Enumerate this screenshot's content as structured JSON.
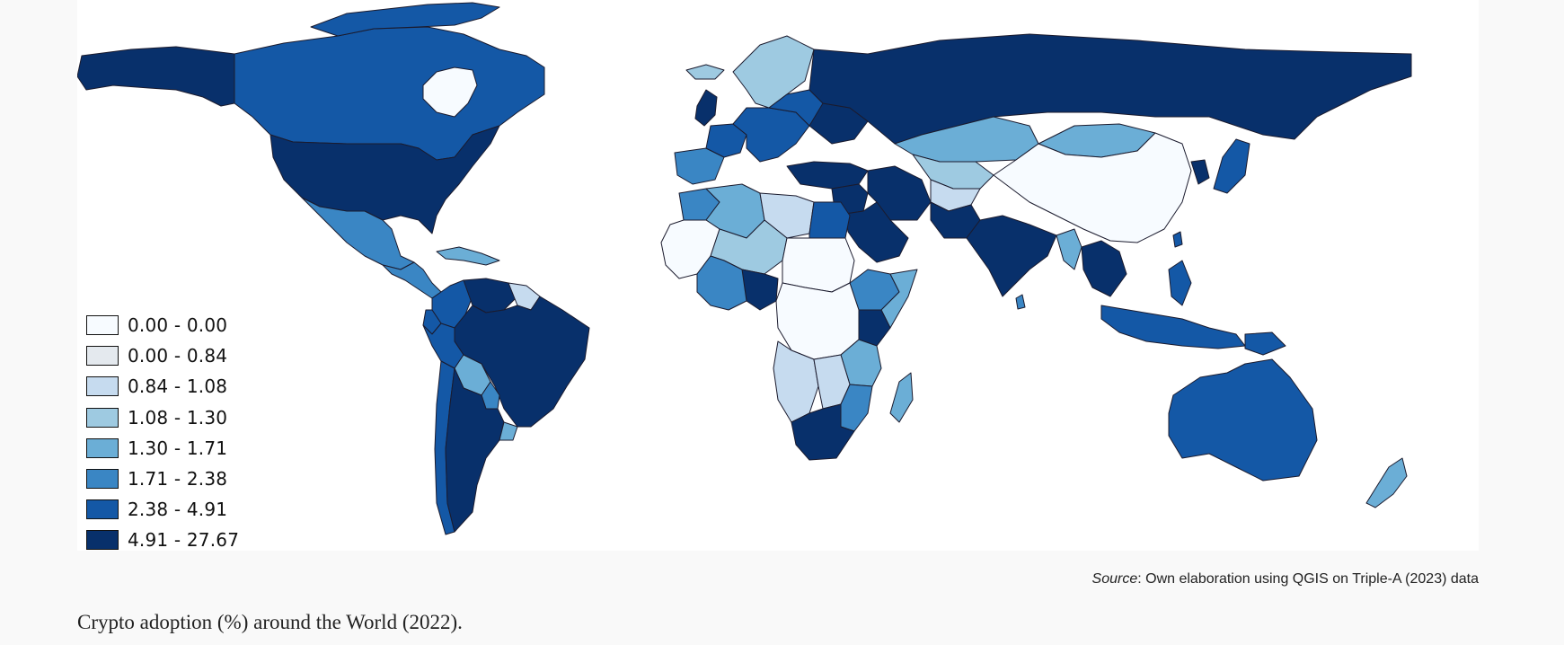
{
  "legend": {
    "classes": [
      {
        "label": "0.00 - 0.00",
        "color": "#f7fbff"
      },
      {
        "label": "0.00 - 0.84",
        "color": "#e4e9ee"
      },
      {
        "label": "0.84 - 1.08",
        "color": "#c6dbef"
      },
      {
        "label": "1.08 - 1.30",
        "color": "#9ecae1"
      },
      {
        "label": "1.30 - 1.71",
        "color": "#6baed6"
      },
      {
        "label": "1.71 - 2.38",
        "color": "#3a86c4"
      },
      {
        "label": "2.38 - 4.91",
        "color": "#1458a6"
      },
      {
        "label": "4.91 - 27.67",
        "color": "#08306b"
      }
    ]
  },
  "source": {
    "prefix": "Source",
    "text": ": Own elaboration using QGIS on Triple-A (2023) data"
  },
  "caption": "Crypto adoption (%) around the World (2022).",
  "regions": [
    {
      "name": "alaska",
      "class": 7
    },
    {
      "name": "canada",
      "class": 6
    },
    {
      "name": "usa",
      "class": 7
    },
    {
      "name": "mexico",
      "class": 5
    },
    {
      "name": "central-america",
      "class": 5
    },
    {
      "name": "caribbean",
      "class": 4
    },
    {
      "name": "greenland",
      "class": 0
    },
    {
      "name": "colombia",
      "class": 6
    },
    {
      "name": "venezuela",
      "class": 7
    },
    {
      "name": "guianas",
      "class": 2
    },
    {
      "name": "brazil",
      "class": 7
    },
    {
      "name": "peru",
      "class": 6
    },
    {
      "name": "ecuador",
      "class": 6
    },
    {
      "name": "bolivia",
      "class": 4
    },
    {
      "name": "paraguay",
      "class": 5
    },
    {
      "name": "chile",
      "class": 6
    },
    {
      "name": "argentina",
      "class": 7
    },
    {
      "name": "uruguay",
      "class": 4
    },
    {
      "name": "iceland",
      "class": 3
    },
    {
      "name": "uk",
      "class": 7
    },
    {
      "name": "iberia",
      "class": 5
    },
    {
      "name": "france",
      "class": 6
    },
    {
      "name": "central-europe",
      "class": 6
    },
    {
      "name": "scandinavia",
      "class": 3
    },
    {
      "name": "eastern-europe",
      "class": 6
    },
    {
      "name": "ukraine",
      "class": 7
    },
    {
      "name": "russia",
      "class": 7
    },
    {
      "name": "turkey",
      "class": 7
    },
    {
      "name": "kazakhstan",
      "class": 4
    },
    {
      "name": "mongolia",
      "class": 4
    },
    {
      "name": "central-asia",
      "class": 3
    },
    {
      "name": "china",
      "class": 0
    },
    {
      "name": "middle-east",
      "class": 7
    },
    {
      "name": "iran",
      "class": 7
    },
    {
      "name": "arabian-peninsula",
      "class": 7
    },
    {
      "name": "afghanistan",
      "class": 2
    },
    {
      "name": "pakistan",
      "class": 7
    },
    {
      "name": "india",
      "class": 7
    },
    {
      "name": "sri-lanka",
      "class": 5
    },
    {
      "name": "mainland-se-asia",
      "class": 7
    },
    {
      "name": "myanmar",
      "class": 4
    },
    {
      "name": "korea",
      "class": 7
    },
    {
      "name": "japan",
      "class": 6
    },
    {
      "name": "taiwan",
      "class": 6
    },
    {
      "name": "philippines",
      "class": 6
    },
    {
      "name": "indonesia",
      "class": 6
    },
    {
      "name": "png",
      "class": 6
    },
    {
      "name": "australia",
      "class": 6
    },
    {
      "name": "new-zealand",
      "class": 4
    },
    {
      "name": "morocco",
      "class": 5
    },
    {
      "name": "algeria",
      "class": 4
    },
    {
      "name": "libya",
      "class": 2
    },
    {
      "name": "egypt",
      "class": 6
    },
    {
      "name": "west-sahel",
      "class": 0
    },
    {
      "name": "mali-niger",
      "class": 3
    },
    {
      "name": "chad-sudan",
      "class": 0
    },
    {
      "name": "nigeria",
      "class": 7
    },
    {
      "name": "gulf-of-guinea",
      "class": 5
    },
    {
      "name": "ethiopia",
      "class": 5
    },
    {
      "name": "somalia",
      "class": 4
    },
    {
      "name": "kenya",
      "class": 7
    },
    {
      "name": "central-africa",
      "class": 0
    },
    {
      "name": "east-africa",
      "class": 4
    },
    {
      "name": "angola-namibia",
      "class": 2
    },
    {
      "name": "southern-central",
      "class": 2
    },
    {
      "name": "mozambique",
      "class": 5
    },
    {
      "name": "south-africa",
      "class": 7
    },
    {
      "name": "madagascar",
      "class": 4
    }
  ]
}
